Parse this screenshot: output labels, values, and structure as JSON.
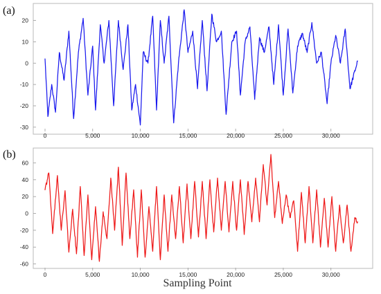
{
  "chart_data": [
    {
      "type": "line",
      "panel_label": "(a)",
      "xlabel": "",
      "ylabel": "",
      "xlim": [
        0,
        33000
      ],
      "ylim": [
        -32,
        27
      ],
      "x_ticks": [
        0,
        5000,
        10000,
        15000,
        20000,
        25000,
        30000
      ],
      "x_tick_labels": [
        "0",
        "5,000",
        "10,000",
        "15,000",
        "20,000",
        "25,000",
        "30,000"
      ],
      "y_ticks": [
        20,
        10,
        0,
        -10,
        -20,
        -30
      ],
      "y_tick_labels": [
        "20",
        "10",
        "0",
        "-10",
        "-20",
        "-30"
      ],
      "grid": false,
      "legend": "none",
      "color": "#1a1aee",
      "series": [
        {
          "x": [
            0,
            300,
            700,
            1100,
            1500,
            2000,
            2500,
            3000,
            3500,
            4000,
            4500,
            5000,
            5300,
            5800,
            6200,
            6700,
            7200,
            7700,
            8200,
            8700,
            9100,
            9500,
            10000,
            10300,
            10800,
            11300,
            11700,
            12100,
            12500,
            13000,
            13500,
            14000,
            14600,
            15000,
            15500,
            16000,
            16500,
            17000,
            17500,
            18000,
            18500,
            19000,
            19600,
            20100,
            20500,
            21000,
            21500,
            22000,
            22500,
            23000,
            23500,
            24000,
            24500,
            25000,
            25500,
            26000,
            26500,
            27000,
            27500,
            28000,
            28500,
            29000,
            29600,
            30000,
            30500,
            31000,
            31500,
            32000,
            32800
          ],
          "values": [
            2,
            -25,
            -10,
            -23,
            5,
            -8,
            15,
            -26,
            5,
            21,
            -15,
            8,
            -22,
            18,
            0,
            20,
            -20,
            20,
            -3,
            18,
            -22,
            -10,
            -29,
            5,
            0,
            22,
            -22,
            20,
            0,
            22,
            -28,
            0,
            25,
            5,
            15,
            -12,
            20,
            -13,
            23,
            10,
            15,
            -24,
            10,
            15,
            -15,
            10,
            17,
            -17,
            12,
            5,
            17,
            -10,
            18,
            -15,
            16,
            -14,
            8,
            14,
            5,
            19,
            0,
            5,
            -19,
            0,
            13,
            0,
            16,
            -12,
            1
          ]
        }
      ]
    },
    {
      "type": "line",
      "panel_label": "(b)",
      "xlabel": "Sampling Point",
      "ylabel": "",
      "xlim": [
        0,
        33000
      ],
      "ylim": [
        -62,
        76
      ],
      "x_ticks": [
        0,
        5000,
        10000,
        15000,
        20000,
        25000,
        30000
      ],
      "x_tick_labels": [
        "0",
        "5,000",
        "10,000",
        "15,000",
        "20,000",
        "25,000",
        "30,000"
      ],
      "y_ticks": [
        60,
        40,
        20,
        0,
        -20,
        -40,
        -60
      ],
      "y_tick_labels": [
        "60",
        "40",
        "20",
        "0",
        "-20",
        "-40",
        "-60"
      ],
      "grid": false,
      "legend": "none",
      "color": "#ee1a1a",
      "series": [
        {
          "x": [
            0,
            400,
            800,
            1300,
            1700,
            2100,
            2500,
            2900,
            3300,
            3700,
            4100,
            4500,
            4900,
            5300,
            5700,
            6100,
            6500,
            6900,
            7300,
            7700,
            8100,
            8500,
            8900,
            9300,
            9700,
            10100,
            10500,
            10900,
            11300,
            11700,
            12100,
            12500,
            12900,
            13300,
            13700,
            14100,
            14500,
            14900,
            15300,
            15700,
            16100,
            16500,
            16900,
            17300,
            17700,
            18100,
            18500,
            18900,
            19300,
            19700,
            20100,
            20500,
            20900,
            21300,
            21700,
            22100,
            22500,
            22900,
            23300,
            23700,
            24100,
            24500,
            24900,
            25300,
            25700,
            26100,
            26500,
            26900,
            27300,
            27700,
            28100,
            28500,
            28900,
            29300,
            29700,
            30100,
            30500,
            30900,
            31300,
            31700,
            32100,
            32500,
            32800
          ],
          "values": [
            28,
            48,
            -24,
            45,
            -20,
            27,
            -46,
            5,
            -48,
            32,
            -50,
            22,
            -55,
            8,
            -57,
            2,
            -30,
            42,
            -20,
            55,
            -38,
            48,
            -30,
            28,
            -52,
            28,
            -52,
            8,
            -45,
            32,
            -55,
            22,
            -45,
            22,
            -30,
            32,
            -35,
            35,
            -30,
            38,
            -28,
            38,
            -30,
            40,
            -22,
            42,
            -20,
            38,
            -22,
            38,
            -20,
            40,
            -25,
            38,
            -10,
            42,
            -10,
            58,
            10,
            70,
            -5,
            38,
            -12,
            22,
            -5,
            15,
            -45,
            25,
            -35,
            32,
            -35,
            28,
            -40,
            18,
            -40,
            20,
            -45,
            10,
            -35,
            10,
            -45,
            -5,
            -10
          ]
        }
      ]
    }
  ]
}
